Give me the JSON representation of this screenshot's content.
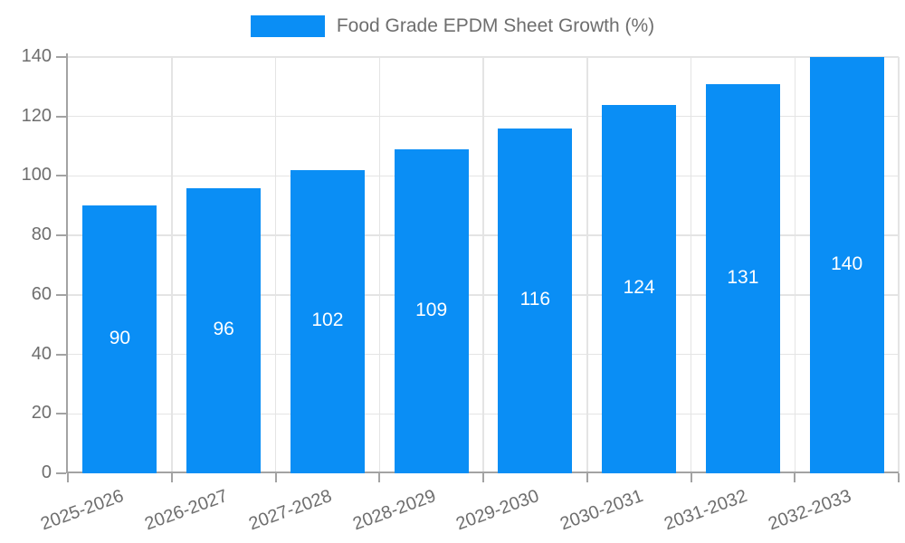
{
  "legend": {
    "label": "Food Grade EPDM Sheet Growth (%)"
  },
  "chart_data": {
    "type": "bar",
    "title": "Food Grade EPDM Sheet Growth (%)",
    "series_name": "Food Grade EPDM Sheet Growth (%)",
    "categories": [
      "2025-2026",
      "2026-2027",
      "2027-2028",
      "2028-2029",
      "2029-2030",
      "2030-2031",
      "2031-2032",
      "2032-2033"
    ],
    "values": [
      90,
      96,
      102,
      109,
      116,
      124,
      131,
      140
    ],
    "value_labels_shown": [
      "90",
      "96",
      "102",
      "109",
      "116",
      "124",
      "131",
      "140"
    ],
    "value_label_position": "inside-center",
    "xlabel": "",
    "ylabel": "",
    "ylim": [
      0,
      140
    ],
    "yticks": [
      0,
      20,
      40,
      60,
      80,
      100,
      120,
      140
    ],
    "grid": true,
    "legend_position": "top-center",
    "style": {
      "bar_color": "#0a8ef5",
      "grid_color": "#e4e4e4",
      "axis_color": "#a3a3a3",
      "text_color": "#6e6e6e",
      "value_label_color": "#ffffff"
    }
  }
}
